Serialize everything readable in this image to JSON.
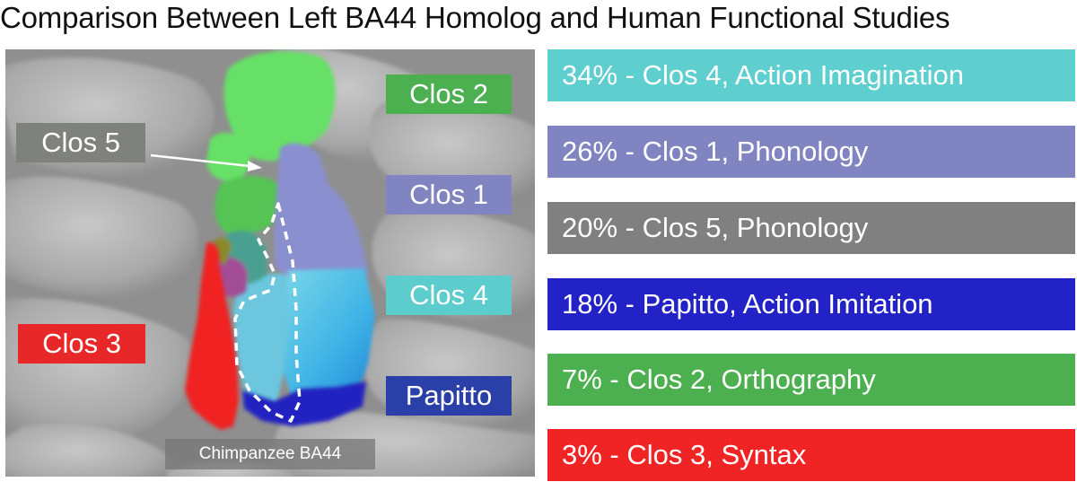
{
  "title": "Comparison Between Left BA44 Homolog and Human Functional Studies",
  "callouts": {
    "clos2": {
      "label": "Clos 2",
      "color": "#4caf50"
    },
    "clos5": {
      "label": "Clos 5",
      "color": "#7f817c"
    },
    "clos1": {
      "label": "Clos 1",
      "color": "#8084c0"
    },
    "clos4": {
      "label": "Clos 4",
      "color": "#5ccccc"
    },
    "clos3": {
      "label": "Clos 3",
      "color": "#e82828"
    },
    "papitto": {
      "label": "Papitto",
      "color": "#2a3fa8"
    }
  },
  "brain_label": "Chimpanzee BA44",
  "legend": [
    {
      "text": "34% - Clos 4, Action Imagination",
      "color": "#5ecece"
    },
    {
      "text": "26% - Clos 1, Phonology",
      "color": "#8084c0"
    },
    {
      "text": "20% - Clos 5, Phonology",
      "color": "#808080"
    },
    {
      "text": "18% - Papitto, Action Imitation",
      "color": "#2222c6"
    },
    {
      "text": "7% - Clos 2, Orthography",
      "color": "#4caf50"
    },
    {
      "text": "3% - Clos 3, Syntax",
      "color": "#f02424"
    }
  ]
}
